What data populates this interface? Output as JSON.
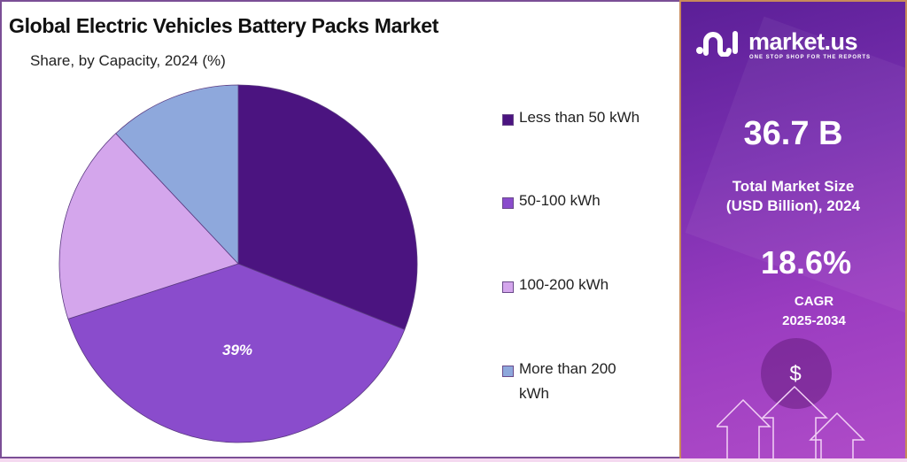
{
  "chart_data": {
    "type": "pie",
    "title": "Global Electric Vehicles Battery Packs Market",
    "subtitle": "Share, by Capacity, 2024 (%)",
    "categories": [
      "Less than 50 kWh",
      "50-100 kWh",
      "100-200 kWh",
      "More than 200 kWh"
    ],
    "values": [
      31,
      39,
      18,
      12
    ],
    "colors": [
      "#4b1480",
      "#8a4ccc",
      "#d4a6ec",
      "#8ea8dc"
    ],
    "data_labels": {
      "50-100 kWh": "39%"
    },
    "start_angle": "12 o'clock, clockwise",
    "legend_position": "right"
  },
  "header": {
    "title": "Global Electric Vehicles Battery Packs Market",
    "subtitle": "Share, by Capacity, 2024 (%)"
  },
  "legend": [
    {
      "label": "Less than 50 kWh",
      "color": "#4b1480"
    },
    {
      "label": "50-100 kWh",
      "color": "#8a4ccc"
    },
    {
      "label": "100-200 kWh",
      "color": "#d4a6ec"
    },
    {
      "label": "More than 200",
      "label2": "kWh",
      "color": "#8ea8dc"
    }
  ],
  "pie_label": "39%",
  "panel": {
    "brand": "market.us",
    "tagline": "ONE STOP SHOP FOR THE REPORTS",
    "market_size": "36.7 B",
    "market_size_label_1": "Total Market Size",
    "market_size_label_2": "(USD Billion), 2024",
    "cagr": "18.6%",
    "cagr_label_1": "CAGR",
    "cagr_label_2": "2025-2034",
    "icon_currency": "$"
  }
}
